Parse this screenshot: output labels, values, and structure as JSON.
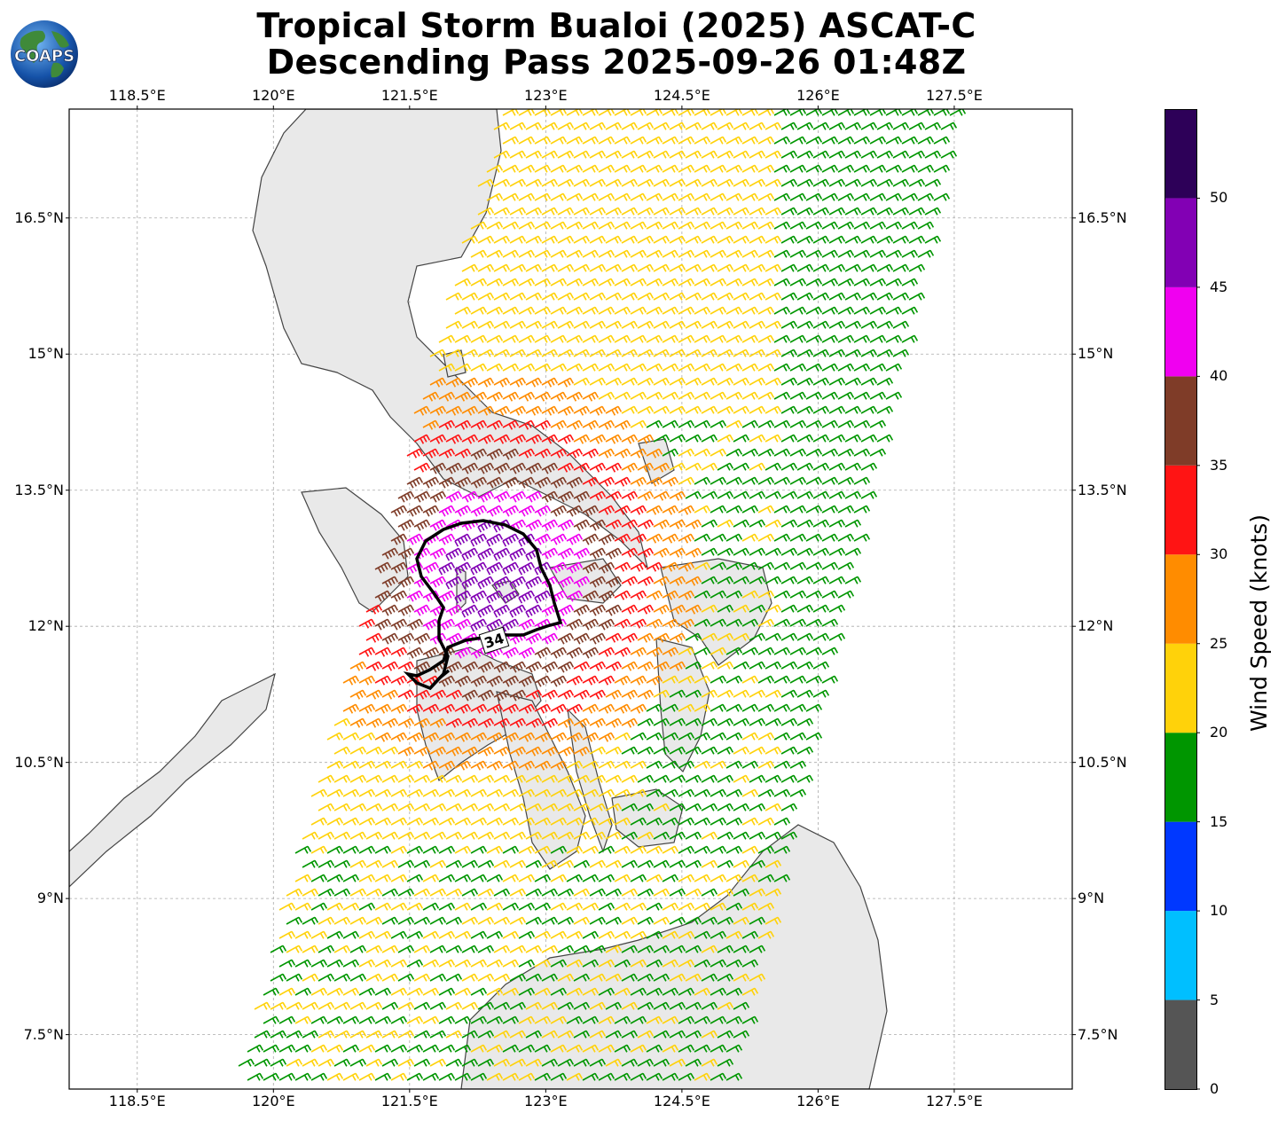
{
  "title": {
    "line1": "Tropical Storm Bualoi (2025) ASCAT-C",
    "line2": "Descending Pass 2025-09-26 01:48Z"
  },
  "logo": {
    "text": "COAPS",
    "icon": "globe-logo-icon"
  },
  "map": {
    "lon_range": [
      117.75,
      128.8
    ],
    "lat_range": [
      6.9,
      17.7
    ],
    "x_ticks": [
      "118.5°E",
      "120°E",
      "121.5°E",
      "123°E",
      "124.5°E",
      "126°E",
      "127.5°E"
    ],
    "y_ticks": [
      "16.5°N",
      "15°N",
      "13.5°N",
      "12°N",
      "10.5°N",
      "9°N",
      "7.5°N"
    ],
    "grid": "dashed gray",
    "contour_label": "34"
  },
  "colorbar": {
    "label": "Wind Speed (knots)",
    "ticks": [
      "0",
      "5",
      "10",
      "15",
      "20",
      "25",
      "30",
      "35",
      "40",
      "45",
      "50"
    ],
    "bins": [
      {
        "range": [
          0,
          5
        ],
        "color": "#555555"
      },
      {
        "range": [
          5,
          10
        ],
        "color": "#00bfff"
      },
      {
        "range": [
          10,
          15
        ],
        "color": "#0038ff"
      },
      {
        "range": [
          15,
          20
        ],
        "color": "#009600"
      },
      {
        "range": [
          20,
          25
        ],
        "color": "#ffd20a"
      },
      {
        "range": [
          25,
          30
        ],
        "color": "#ff8c00"
      },
      {
        "range": [
          30,
          35
        ],
        "color": "#ff1414"
      },
      {
        "range": [
          35,
          40
        ],
        "color": "#7f3c28"
      },
      {
        "range": [
          40,
          45
        ],
        "color": "#f000f0"
      },
      {
        "range": [
          45,
          50
        ],
        "color": "#8200b4"
      },
      {
        "range": [
          50,
          55
        ],
        "color": "#2d0058"
      }
    ]
  }
}
